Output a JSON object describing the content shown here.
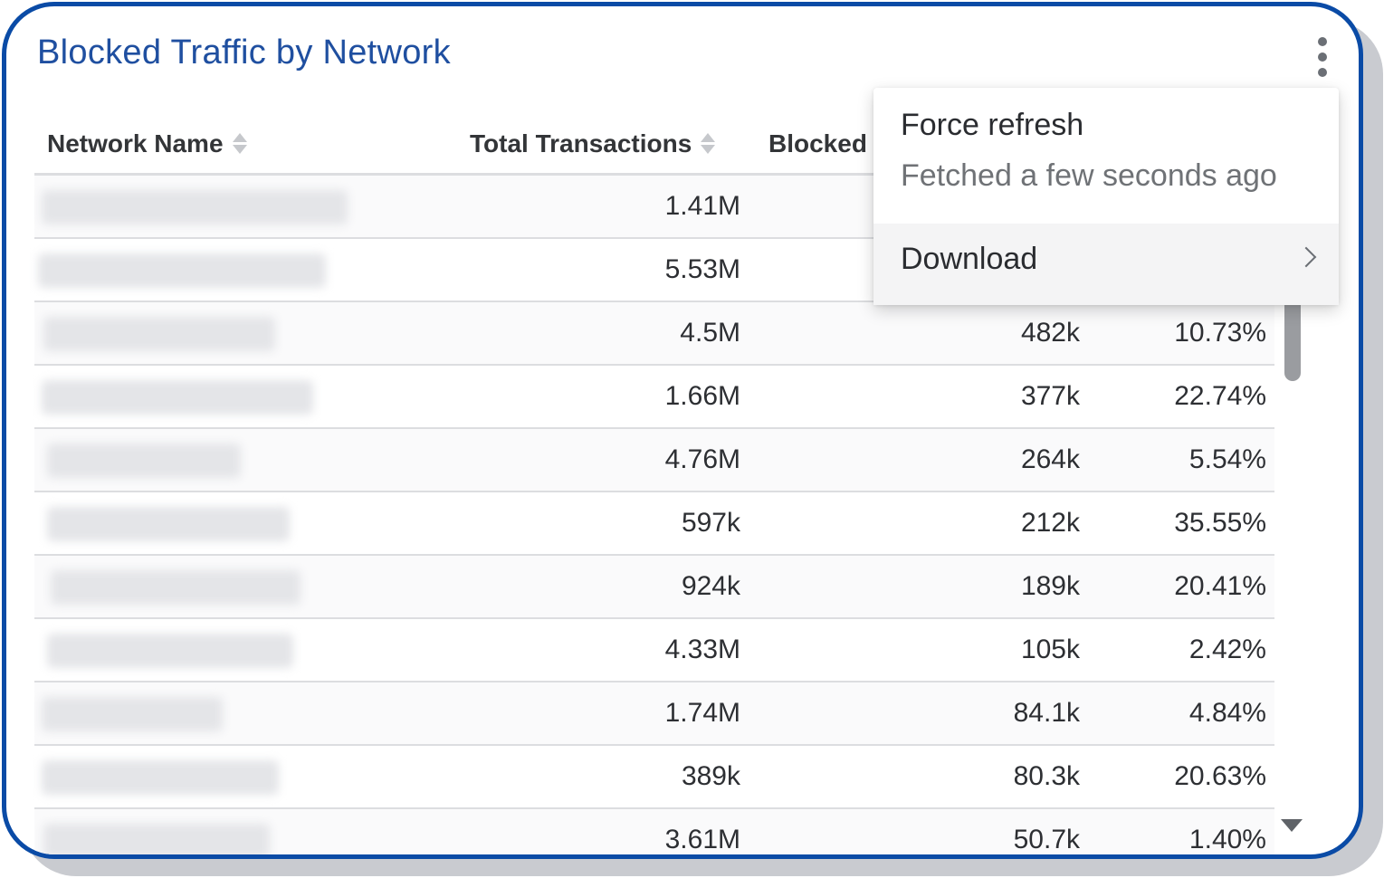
{
  "panel": {
    "title": "Blocked Traffic by Network",
    "accent_color": "#0a4ba6",
    "title_color": "#1f4fa0"
  },
  "table": {
    "columns": [
      {
        "label": "Network Name",
        "sortable": true
      },
      {
        "label": "Total Transactions",
        "sortable": true
      },
      {
        "label": "Blocked",
        "sortable": false
      }
    ],
    "rows": [
      {
        "name": "",
        "total": "1.41M",
        "blocked": "",
        "percent": ""
      },
      {
        "name": "",
        "total": "5.53M",
        "blocked": "",
        "percent": ""
      },
      {
        "name": "",
        "total": "4.5M",
        "blocked": "482k",
        "percent": "10.73%"
      },
      {
        "name": "",
        "total": "1.66M",
        "blocked": "377k",
        "percent": "22.74%"
      },
      {
        "name": "",
        "total": "4.76M",
        "blocked": "264k",
        "percent": "5.54%"
      },
      {
        "name": "",
        "total": "597k",
        "blocked": "212k",
        "percent": "35.55%"
      },
      {
        "name": "",
        "total": "924k",
        "blocked": "189k",
        "percent": "20.41%"
      },
      {
        "name": "",
        "total": "4.33M",
        "blocked": "105k",
        "percent": "2.42%"
      },
      {
        "name": "",
        "total": "1.74M",
        "blocked": "84.1k",
        "percent": "4.84%"
      },
      {
        "name": "",
        "total": "389k",
        "blocked": "80.3k",
        "percent": "20.63%"
      },
      {
        "name": "",
        "total": "3.61M",
        "blocked": "50.7k",
        "percent": "1.40%"
      }
    ]
  },
  "menu": {
    "force_refresh": "Force refresh",
    "fetched_status": "Fetched a few seconds ago",
    "download": "Download"
  },
  "icons": {
    "kebab": "more-vertical-icon",
    "sort": "sort-icon",
    "chevron": "chevron-right-icon",
    "scroll_down": "caret-down-icon"
  }
}
